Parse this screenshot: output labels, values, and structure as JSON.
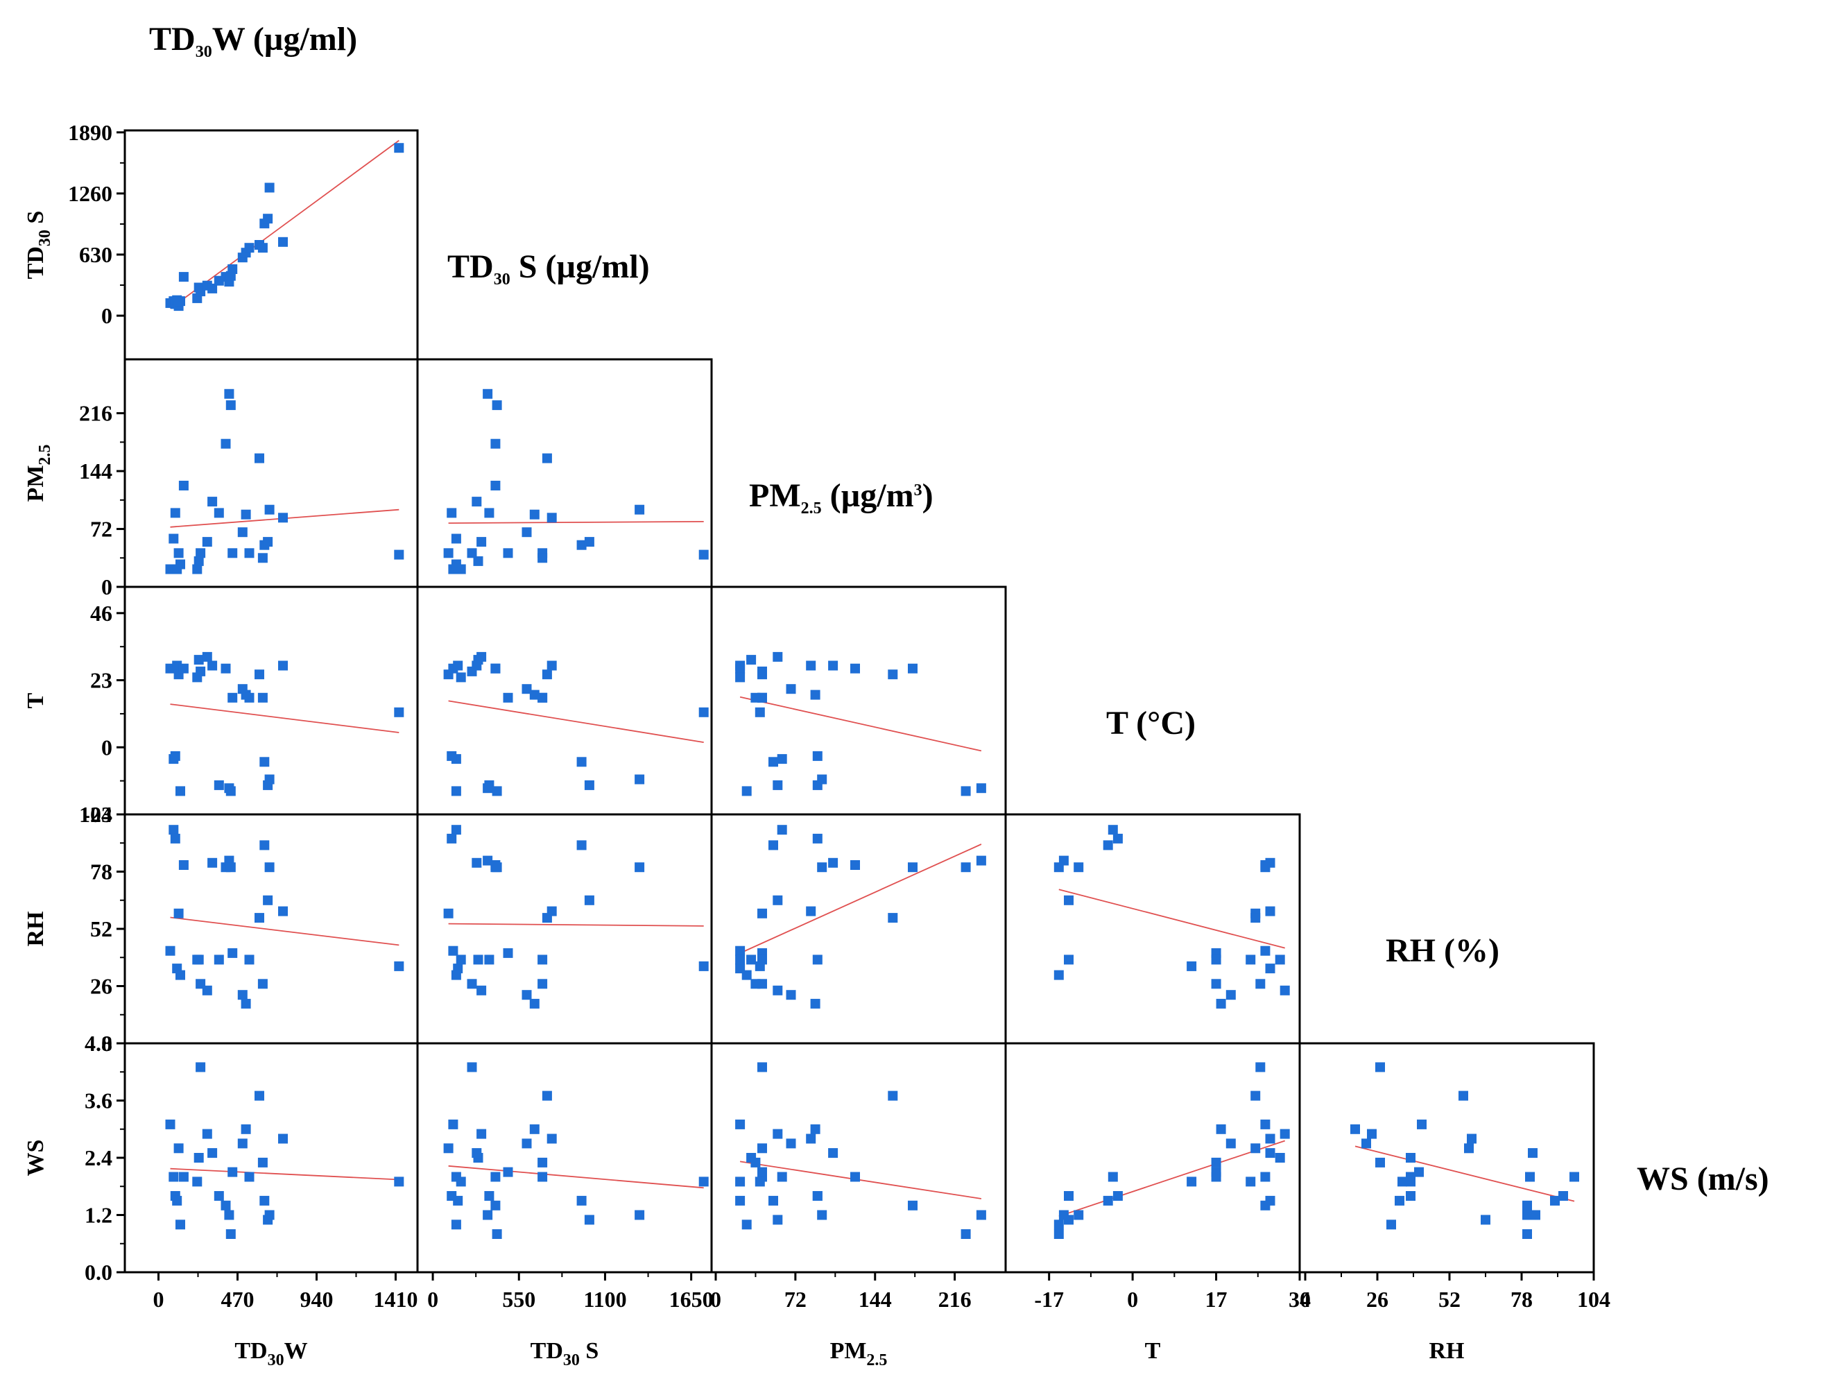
{
  "chart_data": {
    "type": "scatter",
    "layout": "lower-triangular scatter-plot matrix with linear fit lines",
    "point_color": "#1f6fd6",
    "fit_color": "#e05050",
    "diagonal_titles": [
      {
        "base": "TD",
        "sub": "30",
        "rest": "W (µg/ml)"
      },
      {
        "base": "TD",
        "sub": "30",
        "rest": " S (µg/ml)"
      },
      {
        "base": "PM",
        "sub": "2.5",
        "rest": " (µg/m",
        "sup": "3",
        "close": ")"
      },
      {
        "base": "T (°C)"
      },
      {
        "base": "RH (%)"
      },
      {
        "base": "WS (m/s)"
      }
    ],
    "variables": [
      {
        "key": "TD30W",
        "base": "TD",
        "sub": "30",
        "rest": "W"
      },
      {
        "key": "TD30S",
        "base": "TD",
        "sub": "30",
        "rest": " S"
      },
      {
        "key": "PM25",
        "base": "PM",
        "sub": "2.5",
        "rest": ""
      },
      {
        "key": "T",
        "base": "T",
        "sub": "",
        "rest": ""
      },
      {
        "key": "RH",
        "base": "RH",
        "sub": "",
        "rest": ""
      },
      {
        "key": "WS",
        "base": "WS",
        "sub": "",
        "rest": ""
      }
    ],
    "x_axes": [
      {
        "var": "TD30W",
        "min": -200,
        "max": 1540,
        "ticks": [
          "0",
          "470",
          "940",
          "1410"
        ],
        "tick_values": [
          0,
          470,
          940,
          1410
        ]
      },
      {
        "var": "TD30S",
        "min": -80,
        "max": 1780,
        "ticks": [
          "0",
          "550",
          "1100",
          "1650"
        ],
        "tick_values": [
          0,
          550,
          1100,
          1650
        ]
      },
      {
        "var": "PM25",
        "min": 0,
        "max": 262,
        "ticks": [
          "0",
          "72",
          "144",
          "216"
        ],
        "tick_values": [
          0,
          72,
          144,
          216
        ]
      },
      {
        "var": "T",
        "min": -25,
        "max": 34,
        "ticks": [
          "-17",
          "0",
          "17",
          "34"
        ],
        "tick_values": [
          -17,
          0,
          17,
          34
        ]
      },
      {
        "var": "RH",
        "min": 0,
        "max": 104,
        "ticks": [
          "0",
          "26",
          "52",
          "78",
          "104"
        ],
        "tick_values": [
          0,
          26,
          52,
          78,
          104
        ]
      }
    ],
    "y_axes": [
      {
        "var": "TD30S",
        "min": -450,
        "max": 1910,
        "ticks": [
          "0",
          "630",
          "1260",
          "1890"
        ],
        "tick_values": [
          0,
          630,
          1260,
          1890
        ]
      },
      {
        "var": "PM25",
        "min": 0,
        "max": 283,
        "ticks": [
          "0",
          "72",
          "144",
          "216"
        ],
        "tick_values": [
          0,
          72,
          144,
          216
        ]
      },
      {
        "var": "T",
        "min": -23,
        "max": 55,
        "ticks": [
          "-23",
          "0",
          "23",
          "46"
        ],
        "tick_values": [
          -23,
          0,
          23,
          46
        ]
      },
      {
        "var": "RH",
        "min": 0,
        "max": 104,
        "ticks": [
          "0",
          "26",
          "52",
          "78",
          "104"
        ],
        "tick_values": [
          0,
          26,
          52,
          78,
          104
        ]
      },
      {
        "var": "WS",
        "min": 0,
        "max": 4.8,
        "ticks": [
          "0.0",
          "1.2",
          "2.4",
          "3.6",
          "4.8"
        ],
        "tick_values": [
          0,
          1.2,
          2.4,
          3.6,
          4.8
        ]
      }
    ],
    "observations": {
      "TD30W": [
        70,
        90,
        100,
        110,
        120,
        130,
        150,
        230,
        240,
        250,
        290,
        320,
        360,
        400,
        420,
        430,
        440,
        500,
        520,
        540,
        600,
        620,
        630,
        650,
        660,
        740,
        1430
      ],
      "TD30S": [
        130,
        150,
        120,
        160,
        100,
        150,
        400,
        180,
        290,
        250,
        310,
        280,
        360,
        400,
        350,
        410,
        480,
        600,
        650,
        700,
        730,
        700,
        950,
        1000,
        1320,
        760,
        1730
      ],
      "PM25": [
        22,
        60,
        92,
        22,
        42,
        28,
        126,
        22,
        32,
        42,
        56,
        106,
        92,
        178,
        240,
        226,
        42,
        68,
        90,
        42,
        160,
        36,
        52,
        56,
        96,
        86,
        40
      ],
      "T": [
        27,
        -4,
        -3,
        28,
        25,
        -15,
        27,
        24,
        30,
        26,
        31,
        28,
        -13,
        27,
        -14,
        -15,
        17,
        20,
        18,
        17,
        25,
        17,
        -5,
        -13,
        -11,
        28,
        12
      ],
      "RH": [
        42,
        97,
        93,
        34,
        59,
        31,
        81,
        38,
        38,
        27,
        24,
        82,
        38,
        80,
        83,
        80,
        41,
        22,
        18,
        38,
        57,
        27,
        90,
        65,
        80,
        60,
        35
      ],
      "WS": [
        3.1,
        2.0,
        1.6,
        1.5,
        2.6,
        1.0,
        2.0,
        1.9,
        2.4,
        4.3,
        2.9,
        2.5,
        1.6,
        1.4,
        1.2,
        0.8,
        2.1,
        2.7,
        3.0,
        2.0,
        3.7,
        2.3,
        1.5,
        1.1,
        1.2,
        2.8,
        1.9
      ]
    }
  }
}
